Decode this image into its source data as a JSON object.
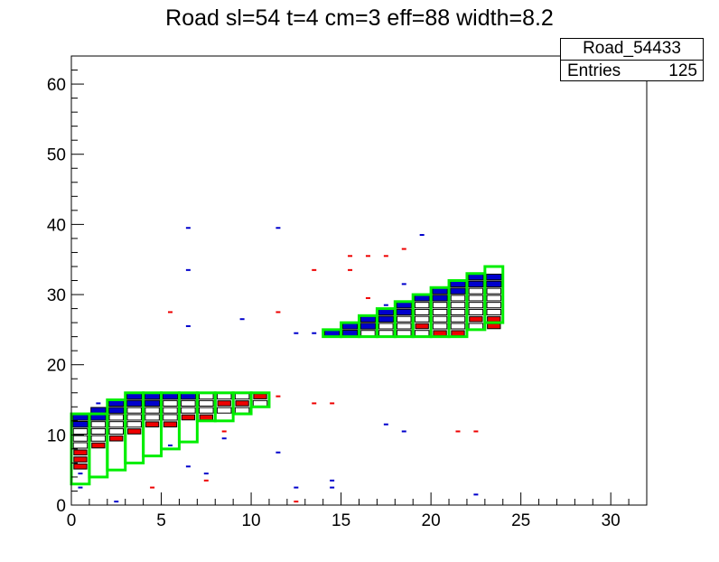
{
  "title": "Road sl=54 t=4 cm=3 eff=88 width=8.2",
  "stats": {
    "name": "Road_54433",
    "entries_label": "Entries",
    "entries_value": "125"
  },
  "colors": {
    "road": "#00ee00",
    "hit_blue": "#0000cc",
    "hit_red": "#ee0000",
    "frame": "#000000"
  },
  "chart_data": {
    "type": "heatmap",
    "title": "Road sl=54 t=4 cm=3 eff=88 width=8.2",
    "xlim": [
      0,
      32
    ],
    "ylim": [
      0,
      64
    ],
    "xticks": [
      0,
      5,
      10,
      15,
      20,
      25,
      30
    ],
    "yticks": [
      0,
      10,
      20,
      30,
      40,
      50,
      60
    ],
    "xlabel": "",
    "ylabel": "",
    "road_segments": [
      {
        "x": 0,
        "y0": 3,
        "y1": 13
      },
      {
        "x": 1,
        "y0": 4,
        "y1": 13
      },
      {
        "x": 2,
        "y0": 5,
        "y1": 15
      },
      {
        "x": 3,
        "y0": 6,
        "y1": 16
      },
      {
        "x": 4,
        "y0": 7,
        "y1": 16
      },
      {
        "x": 5,
        "y0": 8,
        "y1": 16
      },
      {
        "x": 6,
        "y0": 9,
        "y1": 16
      },
      {
        "x": 7,
        "y0": 12,
        "y1": 16
      },
      {
        "x": 8,
        "y0": 12,
        "y1": 16
      },
      {
        "x": 9,
        "y0": 13,
        "y1": 16
      },
      {
        "x": 10,
        "y0": 14,
        "y1": 16
      },
      {
        "x": 14,
        "y0": 24,
        "y1": 25
      },
      {
        "x": 15,
        "y0": 24,
        "y1": 26
      },
      {
        "x": 16,
        "y0": 24,
        "y1": 27
      },
      {
        "x": 17,
        "y0": 24,
        "y1": 28
      },
      {
        "x": 18,
        "y0": 24,
        "y1": 29
      },
      {
        "x": 19,
        "y0": 24,
        "y1": 30
      },
      {
        "x": 20,
        "y0": 24,
        "y1": 31
      },
      {
        "x": 21,
        "y0": 24,
        "y1": 32
      },
      {
        "x": 22,
        "y0": 25,
        "y1": 33
      },
      {
        "x": 23,
        "y0": 26,
        "y1": 34
      }
    ],
    "cells_blue": [
      [
        0,
        12
      ],
      [
        0,
        11
      ],
      [
        1,
        13
      ],
      [
        1,
        12
      ],
      [
        2,
        14
      ],
      [
        2,
        13
      ],
      [
        3,
        15
      ],
      [
        3,
        14
      ],
      [
        4,
        15
      ],
      [
        4,
        14
      ],
      [
        5,
        15
      ],
      [
        6,
        15
      ],
      [
        14,
        24
      ],
      [
        15,
        25
      ],
      [
        15,
        24
      ],
      [
        16,
        26
      ],
      [
        16,
        25
      ],
      [
        17,
        27
      ],
      [
        17,
        26
      ],
      [
        18,
        28
      ],
      [
        18,
        27
      ],
      [
        19,
        29
      ],
      [
        20,
        30
      ],
      [
        20,
        29
      ],
      [
        21,
        31
      ],
      [
        21,
        30
      ],
      [
        22,
        32
      ],
      [
        22,
        31
      ],
      [
        23,
        32
      ],
      [
        23,
        31
      ]
    ],
    "cells_red": [
      [
        0,
        7
      ],
      [
        0,
        6
      ],
      [
        0,
        5
      ],
      [
        1,
        8
      ],
      [
        2,
        9
      ],
      [
        3,
        10
      ],
      [
        4,
        11
      ],
      [
        5,
        11
      ],
      [
        6,
        12
      ],
      [
        7,
        12
      ],
      [
        8,
        14
      ],
      [
        9,
        14
      ],
      [
        10,
        15
      ],
      [
        19,
        25
      ],
      [
        20,
        24
      ],
      [
        21,
        24
      ],
      [
        22,
        26
      ],
      [
        23,
        26
      ],
      [
        23,
        25
      ]
    ],
    "cells_empty": [
      [
        0,
        10
      ],
      [
        0,
        9
      ],
      [
        0,
        8
      ],
      [
        1,
        11
      ],
      [
        1,
        10
      ],
      [
        1,
        9
      ],
      [
        2,
        12
      ],
      [
        2,
        11
      ],
      [
        2,
        10
      ],
      [
        3,
        13
      ],
      [
        3,
        12
      ],
      [
        3,
        11
      ],
      [
        4,
        13
      ],
      [
        4,
        12
      ],
      [
        5,
        14
      ],
      [
        5,
        13
      ],
      [
        5,
        12
      ],
      [
        6,
        14
      ],
      [
        6,
        13
      ],
      [
        7,
        15
      ],
      [
        7,
        14
      ],
      [
        7,
        13
      ],
      [
        8,
        15
      ],
      [
        8,
        13
      ],
      [
        9,
        15
      ],
      [
        9,
        13
      ],
      [
        10,
        14
      ],
      [
        14,
        24
      ],
      [
        16,
        24
      ],
      [
        17,
        25
      ],
      [
        17,
        24
      ],
      [
        18,
        26
      ],
      [
        18,
        25
      ],
      [
        18,
        24
      ],
      [
        19,
        28
      ],
      [
        19,
        27
      ],
      [
        19,
        26
      ],
      [
        19,
        24
      ],
      [
        20,
        28
      ],
      [
        20,
        27
      ],
      [
        20,
        26
      ],
      [
        20,
        25
      ],
      [
        21,
        29
      ],
      [
        21,
        28
      ],
      [
        21,
        27
      ],
      [
        21,
        26
      ],
      [
        21,
        25
      ],
      [
        22,
        30
      ],
      [
        22,
        29
      ],
      [
        22,
        28
      ],
      [
        22,
        27
      ],
      [
        22,
        25
      ],
      [
        23,
        30
      ],
      [
        23,
        29
      ],
      [
        23,
        28
      ],
      [
        23,
        27
      ]
    ],
    "dots_blue": [
      [
        6,
        39
      ],
      [
        11,
        39
      ],
      [
        19,
        38
      ],
      [
        6,
        33
      ],
      [
        6,
        25
      ],
      [
        9,
        26
      ],
      [
        12,
        24
      ],
      [
        13,
        24
      ],
      [
        17,
        11
      ],
      [
        18,
        10
      ],
      [
        6,
        5
      ],
      [
        7,
        4
      ],
      [
        11,
        7
      ],
      [
        8,
        9
      ],
      [
        14,
        3
      ],
      [
        14,
        2
      ],
      [
        12,
        2
      ],
      [
        0,
        2
      ],
      [
        2,
        0
      ],
      [
        22,
        1
      ],
      [
        0,
        4
      ],
      [
        5,
        8
      ],
      [
        1,
        14
      ],
      [
        17,
        28
      ],
      [
        18,
        31
      ]
    ],
    "dots_red": [
      [
        18,
        36
      ],
      [
        16,
        35
      ],
      [
        17,
        35
      ],
      [
        15,
        35
      ],
      [
        15,
        33
      ],
      [
        13,
        33
      ],
      [
        5,
        27
      ],
      [
        11,
        27
      ],
      [
        16,
        29
      ],
      [
        13,
        14
      ],
      [
        14,
        14
      ],
      [
        11,
        15
      ],
      [
        21,
        10
      ],
      [
        22,
        10
      ],
      [
        8,
        10
      ],
      [
        7,
        3
      ],
      [
        4,
        2
      ],
      [
        12,
        0
      ]
    ]
  }
}
